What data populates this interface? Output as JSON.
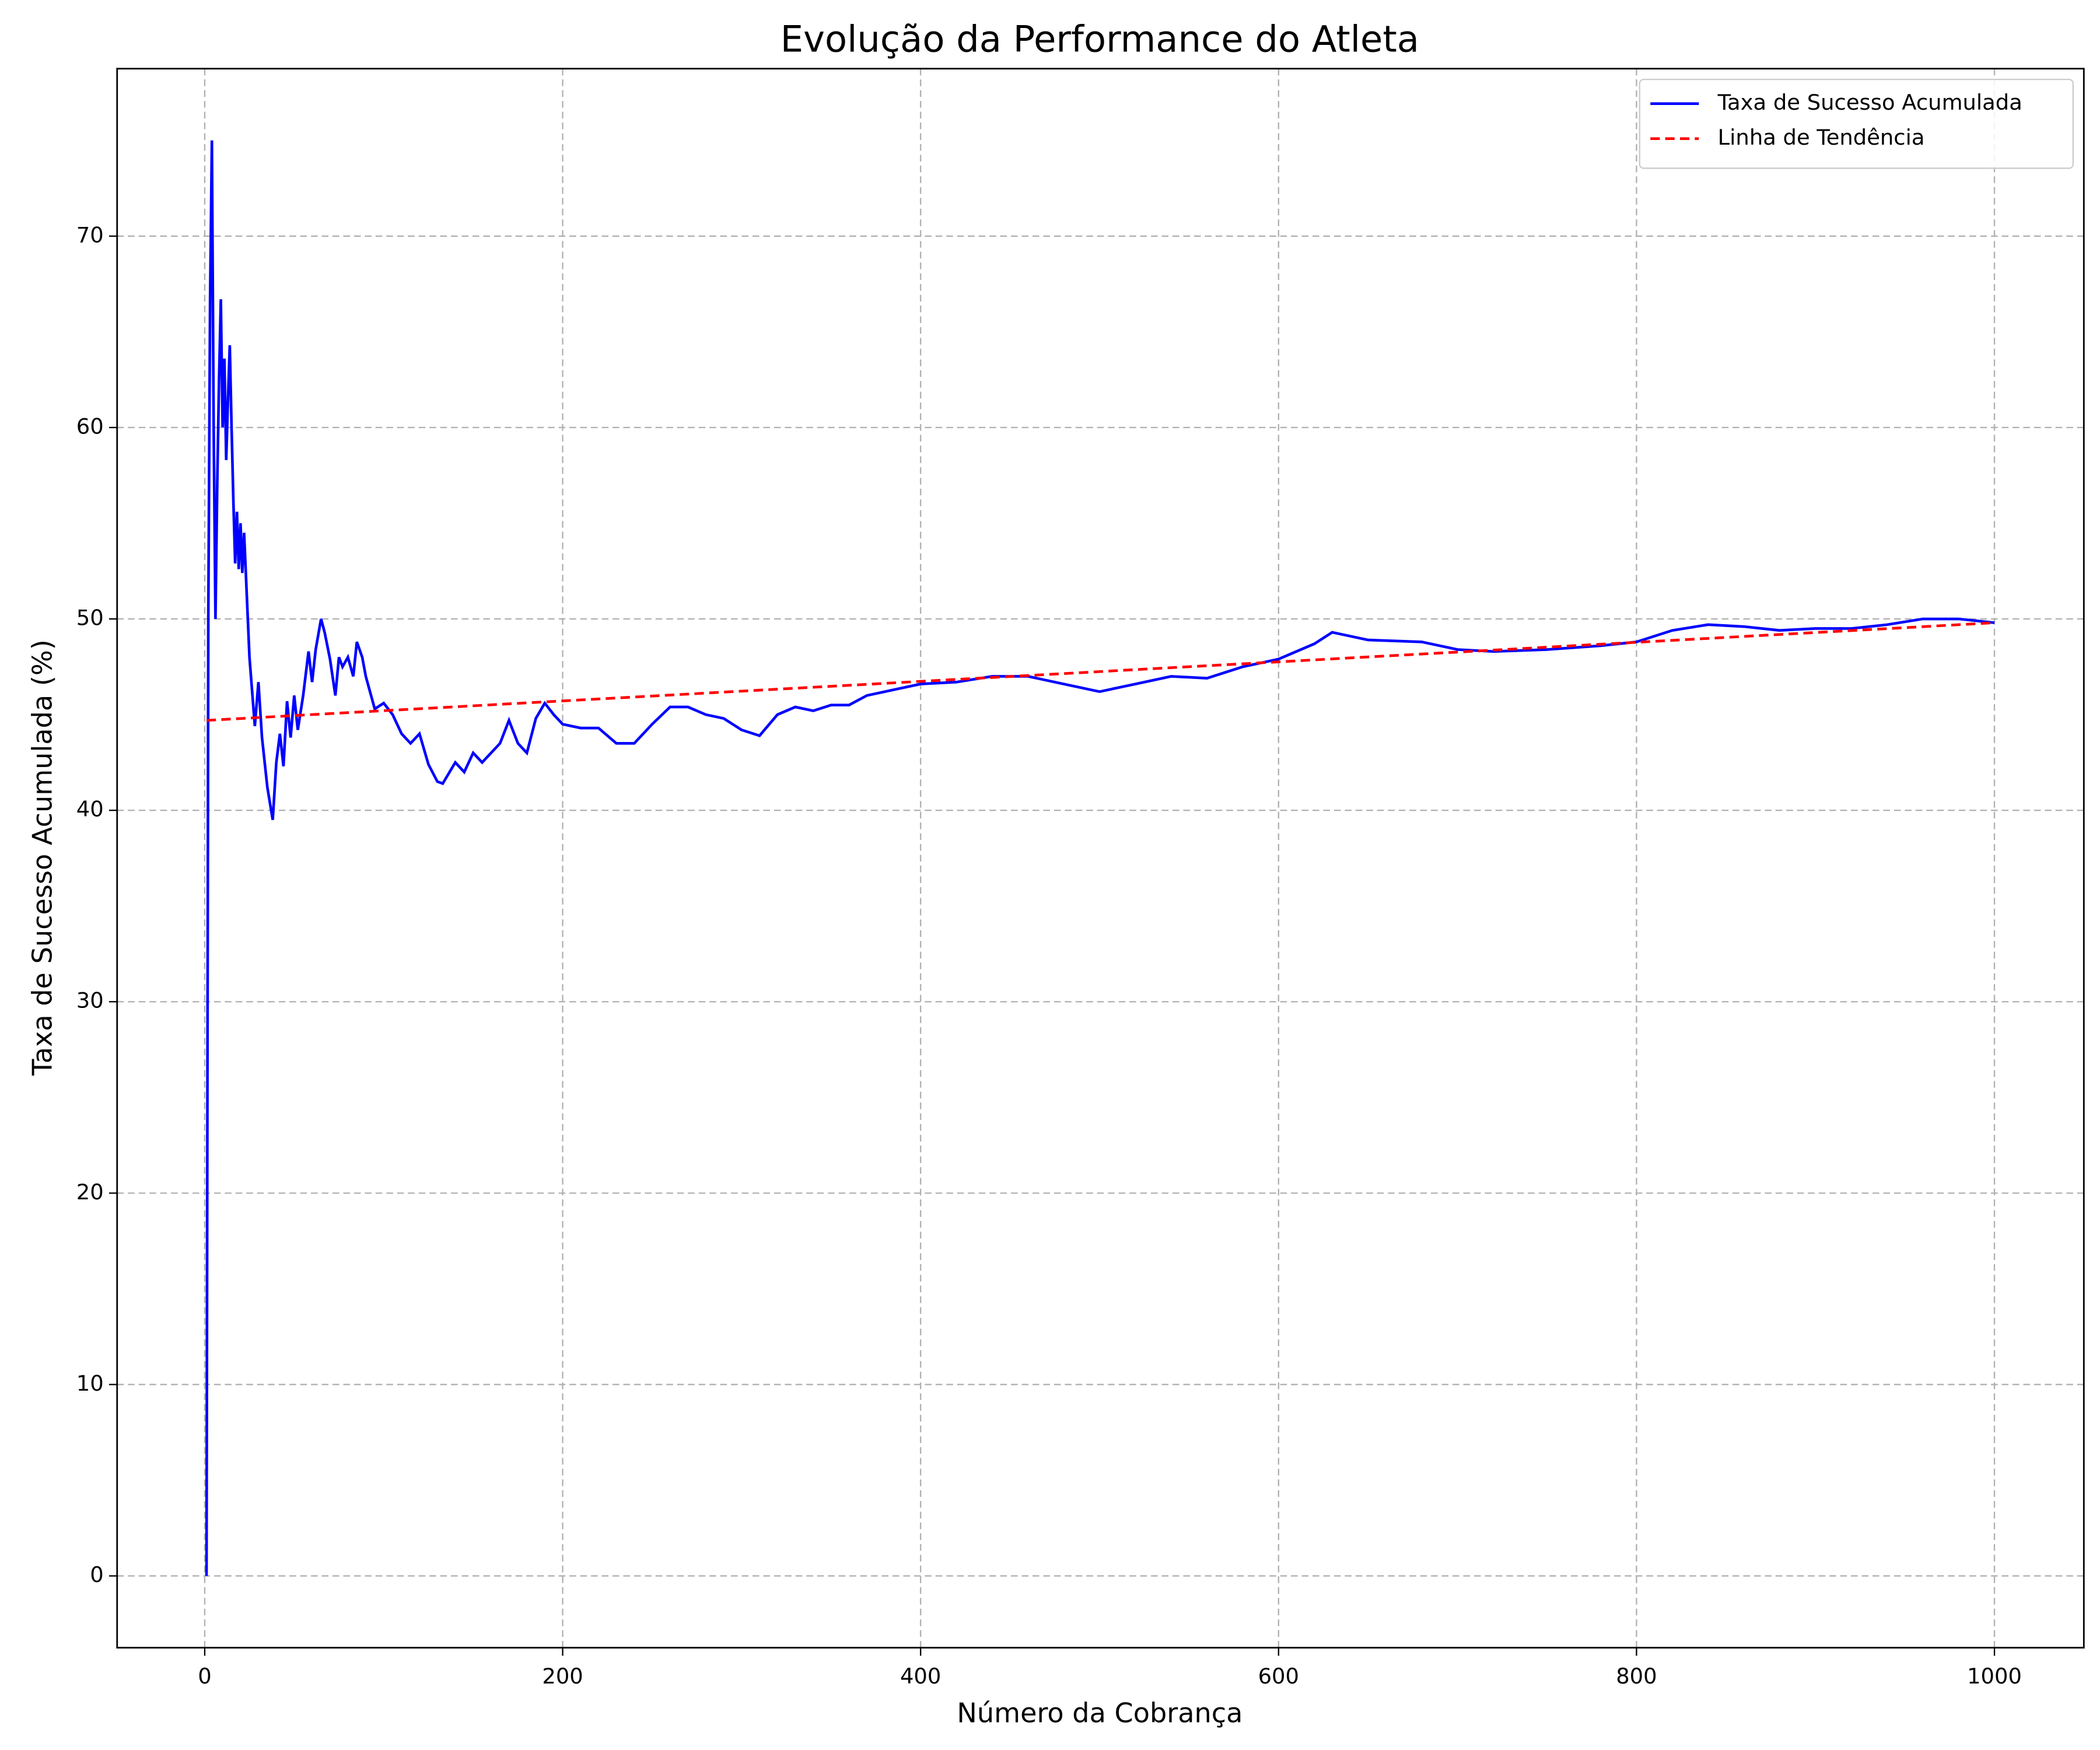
{
  "chart_data": {
    "type": "line",
    "title": "Evolução da Performance do Atleta",
    "xlabel": "Número da Cobrança",
    "ylabel": "Taxa de Sucesso Acumulada (%)",
    "xlim": [
      -48.95,
      1049.95
    ],
    "ylim": [
      -3.75,
      78.75
    ],
    "xticks": [
      0,
      200,
      400,
      600,
      800,
      1000
    ],
    "yticks": [
      0,
      10,
      20,
      30,
      40,
      50,
      60,
      70
    ],
    "grid": true,
    "legend": "upper right",
    "series": [
      {
        "name": "Taxa de Sucesso Acumulada",
        "color": "#0000ff",
        "style": "solid",
        "x": [
          1,
          2,
          3,
          4,
          5,
          6,
          7,
          8,
          9,
          10,
          11,
          12,
          13,
          14,
          15,
          16,
          17,
          18,
          19,
          20,
          21,
          22,
          25,
          28,
          30,
          32,
          35,
          38,
          40,
          42,
          44,
          46,
          48,
          50,
          52,
          55,
          58,
          60,
          62,
          65,
          67,
          70,
          73,
          75,
          77,
          80,
          83,
          85,
          88,
          90,
          95,
          100,
          105,
          110,
          115,
          120,
          125,
          130,
          133,
          140,
          145,
          150,
          155,
          160,
          165,
          170,
          175,
          180,
          185,
          190,
          195,
          200,
          210,
          220,
          230,
          240,
          250,
          260,
          270,
          280,
          290,
          300,
          310,
          320,
          330,
          340,
          350,
          360,
          370,
          380,
          390,
          400,
          420,
          440,
          460,
          480,
          500,
          520,
          540,
          560,
          580,
          600,
          620,
          630,
          650,
          680,
          700,
          720,
          750,
          780,
          800,
          820,
          840,
          860,
          880,
          900,
          920,
          940,
          960,
          980,
          1000
        ],
        "values": [
          0,
          50,
          66.7,
          75,
          60,
          50,
          57.1,
          62.5,
          66.7,
          60,
          63.6,
          58.3,
          61.5,
          64.3,
          60,
          56.2,
          52.9,
          55.6,
          52.6,
          55,
          52.4,
          54.5,
          48,
          44.4,
          46.7,
          43.8,
          41.2,
          39.5,
          42.5,
          44,
          42.3,
          45.7,
          43.8,
          46,
          44.2,
          46,
          48.3,
          46.7,
          48.4,
          50,
          49.3,
          47.9,
          46,
          48,
          47.5,
          48,
          47,
          48.8,
          48,
          47,
          45.3,
          45.6,
          45,
          44,
          43.5,
          44,
          42.4,
          41.5,
          41.4,
          42.5,
          42,
          43,
          42.5,
          43,
          43.5,
          44.7,
          43.5,
          43,
          44.8,
          45.6,
          45,
          44.5,
          44.3,
          44.3,
          43.5,
          43.5,
          44.5,
          45.4,
          45.4,
          45,
          44.8,
          44.2,
          43.9,
          45,
          45.4,
          45.2,
          45.5,
          45.5,
          46,
          46.2,
          46.4,
          46.6,
          46.7,
          47,
          47,
          46.6,
          46.2,
          46.6,
          47,
          46.9,
          47.5,
          47.9,
          48.7,
          49.3,
          48.9,
          48.8,
          48.4,
          48.3,
          48.4,
          48.6,
          48.8,
          49.4,
          49.7,
          49.6,
          49.4,
          49.5,
          49.5,
          49.7,
          50,
          50,
          49.8
        ]
      },
      {
        "name": "Linha de Tendência",
        "color": "#ff0000",
        "style": "dashed",
        "x": [
          1,
          1000
        ],
        "values": [
          44.7,
          49.8
        ]
      }
    ]
  }
}
